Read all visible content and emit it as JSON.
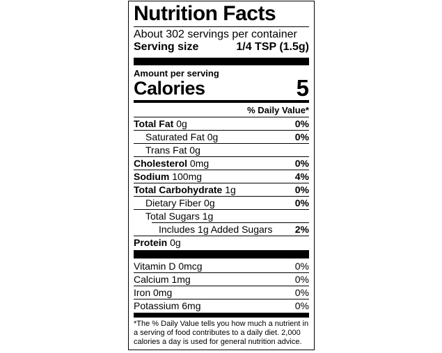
{
  "label": {
    "title": "Nutrition Facts",
    "servings_per_container": "About 302 servings per container",
    "serving_size": {
      "label": "Serving size",
      "value": "1/4 TSP (1.5g)"
    },
    "amount_per_serving": "Amount per serving",
    "calories": {
      "label": "Calories",
      "value": "5"
    },
    "daily_value_header": "% Daily Value*",
    "nutrient_rows": [
      {
        "name": "Total Fat",
        "amount": "0g",
        "daily_value": "0%",
        "bold_name": true,
        "indent": 0
      },
      {
        "name": "Saturated Fat",
        "amount": "0g",
        "daily_value": "0%",
        "bold_name": false,
        "indent": 1
      },
      {
        "name": "Trans Fat",
        "amount": "0g",
        "daily_value": "",
        "bold_name": false,
        "indent": 1
      },
      {
        "name": "Cholesterol",
        "amount": "0mg",
        "daily_value": "0%",
        "bold_name": true,
        "indent": 0
      },
      {
        "name": "Sodium",
        "amount": "100mg",
        "daily_value": "4%",
        "bold_name": true,
        "indent": 0
      },
      {
        "name": "Total Carbohydrate",
        "amount": "1g",
        "daily_value": "0%",
        "bold_name": true,
        "indent": 0
      },
      {
        "name": "Dietary Fiber",
        "amount": "0g",
        "daily_value": "0%",
        "bold_name": false,
        "indent": 1
      },
      {
        "name": "Total Sugars",
        "amount": "1g",
        "daily_value": "",
        "bold_name": false,
        "indent": 1
      },
      {
        "name": "Includes 1g Added Sugars",
        "amount": "",
        "daily_value": "2%",
        "bold_name": false,
        "indent": 2,
        "indented_rule": true
      },
      {
        "name": "Protein",
        "amount": "0g",
        "daily_value": "",
        "bold_name": true,
        "indent": 0
      }
    ],
    "micronutrient_rows": [
      {
        "name": "Vitamin D",
        "amount": "0mcg",
        "daily_value": "0%"
      },
      {
        "name": "Calcium",
        "amount": "1mg",
        "daily_value": "0%"
      },
      {
        "name": "Iron",
        "amount": "0mg",
        "daily_value": "0%"
      },
      {
        "name": "Potassium",
        "amount": "6mg",
        "daily_value": "0%"
      }
    ],
    "footnote": "*The % Daily Value tells you how much a nutrient in a serving of food contributes to a daily diet. 2,000 calories a day is used for general nutrition advice.",
    "colors": {
      "text": "#000000",
      "background": "#ffffff"
    }
  }
}
